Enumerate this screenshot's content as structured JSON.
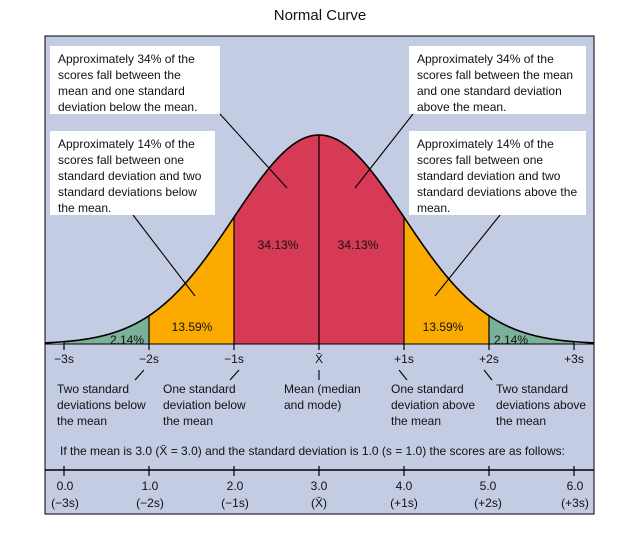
{
  "title": "Normal Curve",
  "colors": {
    "background_panel": "#c3cce3",
    "one_sd_region": "#d63a55",
    "two_sd_region": "#fbaa00",
    "three_sd_region": "#7bb09b",
    "tail_region": "#ffffff",
    "outline": "#000000"
  },
  "callouts": {
    "upper_left": "Approximately 34% of the scores fall between the mean and one standard deviation below the mean.",
    "upper_right": "Approximately 34% of the scores fall between the mean and one standard deviation above the mean.",
    "lower_left": "Approximately 14% of the scores fall between one standard deviation and two standard deviations below the mean.",
    "lower_right": "Approximately 14% of the scores fall between one standard deviation and two standard deviations above the mean."
  },
  "chart_data": {
    "type": "area",
    "title": "Normal Curve",
    "x": [
      -3,
      -2,
      -1,
      0,
      1,
      2,
      3
    ],
    "region_percents": [
      {
        "from": -3,
        "to": -2,
        "label": "2.14%"
      },
      {
        "from": -2,
        "to": -1,
        "label": "13.59%"
      },
      {
        "from": -1,
        "to": 0,
        "label": "34.13%"
      },
      {
        "from": 0,
        "to": 1,
        "label": "34.13%"
      },
      {
        "from": 1,
        "to": 2,
        "label": "13.59%"
      },
      {
        "from": 2,
        "to": 3,
        "label": "2.14%"
      }
    ],
    "axis_labels": [
      "−3s",
      "−2s",
      "−1s",
      "X̄",
      "+1s",
      "+2s",
      "+3s"
    ]
  },
  "notes": {
    "two_below": "Two standard deviations below the mean",
    "one_below": "One standard deviation below the mean",
    "mean": "Mean (median and mode)",
    "one_above": "One standard deviation above the mean",
    "two_above": "Two standard deviations above the mean"
  },
  "example_sentence": "If the mean is 3.0 (X̄ = 3.0) and the standard deviation is 1.0 (s = 1.0) the scores are as follows:",
  "score_table": [
    {
      "value": "0.0",
      "sd": "(−3s)"
    },
    {
      "value": "1.0",
      "sd": "(−2s)"
    },
    {
      "value": "2.0",
      "sd": "(−1s)"
    },
    {
      "value": "3.0",
      "sd": "(X̄)"
    },
    {
      "value": "4.0",
      "sd": "(+1s)"
    },
    {
      "value": "5.0",
      "sd": "(+2s)"
    },
    {
      "value": "6.0",
      "sd": "(+3s)"
    }
  ]
}
